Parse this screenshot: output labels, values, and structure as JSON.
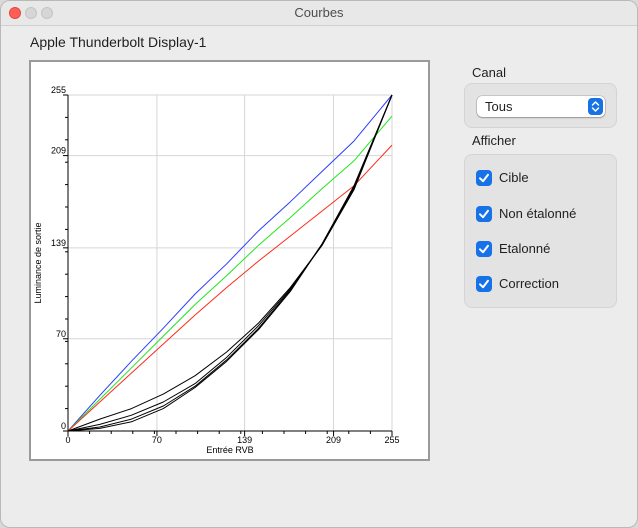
{
  "window": {
    "title": "Courbes",
    "controls": [
      "close-icon",
      "minimize-icon",
      "zoom-icon"
    ]
  },
  "display_name": "Apple Thunderbolt Display-1",
  "channel": {
    "heading": "Canal",
    "selected": "Tous",
    "icon": "up-down-chevron-icon"
  },
  "show": {
    "heading": "Afficher",
    "options": [
      {
        "label": "Cible",
        "checked": true
      },
      {
        "label": "Non étalonné",
        "checked": true
      },
      {
        "label": "Etalonné",
        "checked": true
      },
      {
        "label": "Correction",
        "checked": true
      }
    ]
  },
  "colors": {
    "accent": "#1672e6",
    "red": "#ff2a1a",
    "green": "#22e61e",
    "blue": "#2a3cff",
    "black": "#000000"
  },
  "chart_data": {
    "type": "line",
    "xlabel": "Entrée RVB",
    "ylabel": "Luminance de sortie",
    "xlim": [
      0,
      255
    ],
    "ylim": [
      0,
      255
    ],
    "xticks": [
      0,
      70,
      139,
      209,
      255
    ],
    "yticks": [
      0,
      70,
      139,
      209,
      255
    ],
    "grid": true,
    "series": [
      {
        "color": "blue",
        "points": [
          [
            0,
            0
          ],
          [
            25,
            27
          ],
          [
            50,
            53
          ],
          [
            75,
            78
          ],
          [
            100,
            104
          ],
          [
            125,
            127
          ],
          [
            150,
            152
          ],
          [
            175,
            174
          ],
          [
            200,
            197
          ],
          [
            225,
            220
          ],
          [
            255,
            255
          ]
        ]
      },
      {
        "color": "green",
        "points": [
          [
            0,
            0
          ],
          [
            25,
            24
          ],
          [
            50,
            48
          ],
          [
            75,
            72
          ],
          [
            100,
            96
          ],
          [
            125,
            118
          ],
          [
            150,
            141
          ],
          [
            175,
            162
          ],
          [
            200,
            184
          ],
          [
            225,
            205
          ],
          [
            255,
            239
          ]
        ]
      },
      {
        "color": "red",
        "points": [
          [
            0,
            0
          ],
          [
            25,
            22
          ],
          [
            50,
            44
          ],
          [
            75,
            66
          ],
          [
            100,
            88
          ],
          [
            125,
            109
          ],
          [
            150,
            129
          ],
          [
            175,
            148
          ],
          [
            200,
            167
          ],
          [
            225,
            186
          ],
          [
            255,
            217
          ]
        ]
      },
      {
        "color": "black",
        "points": [
          [
            0,
            0
          ],
          [
            25,
            9
          ],
          [
            50,
            17
          ],
          [
            75,
            28
          ],
          [
            100,
            42
          ],
          [
            125,
            60
          ],
          [
            150,
            82
          ],
          [
            175,
            109
          ],
          [
            200,
            141
          ],
          [
            225,
            183
          ],
          [
            255,
            255
          ]
        ]
      },
      {
        "color": "black",
        "points": [
          [
            0,
            0
          ],
          [
            25,
            5
          ],
          [
            50,
            12
          ],
          [
            75,
            22
          ],
          [
            100,
            36
          ],
          [
            125,
            56
          ],
          [
            150,
            80
          ],
          [
            175,
            108
          ],
          [
            200,
            141
          ],
          [
            225,
            184
          ],
          [
            255,
            255
          ]
        ]
      },
      {
        "color": "black",
        "points": [
          [
            0,
            0
          ],
          [
            25,
            3
          ],
          [
            50,
            9
          ],
          [
            75,
            19
          ],
          [
            100,
            34
          ],
          [
            125,
            54
          ],
          [
            150,
            78
          ],
          [
            175,
            107
          ],
          [
            200,
            142
          ],
          [
            225,
            185
          ],
          [
            255,
            255
          ]
        ]
      },
      {
        "color": "black",
        "points": [
          [
            0,
            0
          ],
          [
            25,
            2
          ],
          [
            50,
            7
          ],
          [
            75,
            17
          ],
          [
            100,
            33
          ],
          [
            125,
            53
          ],
          [
            150,
            77
          ],
          [
            175,
            106
          ],
          [
            200,
            142
          ],
          [
            225,
            186
          ],
          [
            255,
            255
          ]
        ]
      }
    ]
  }
}
